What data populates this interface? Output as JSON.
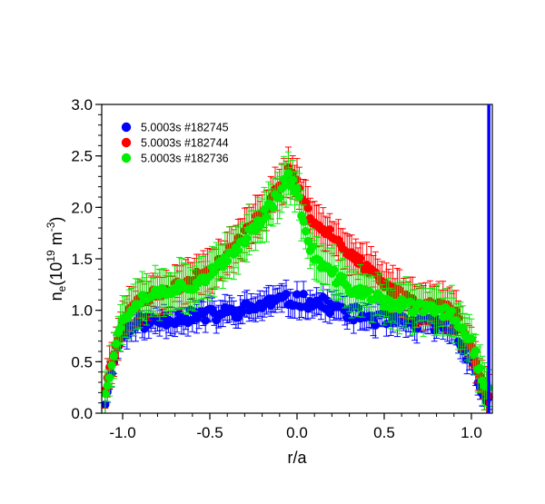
{
  "chart_data": {
    "type": "scatter",
    "title": "",
    "xlabel": "r/a",
    "ylabel": {
      "base": "n",
      "sub": "e",
      "unit_prefix": "(10",
      "unit_exp": "19",
      "unit_mid": " m",
      "unit_exp2": "-3",
      "unit_suffix": ")"
    },
    "xlim": [
      -1.12,
      1.12
    ],
    "ylim": [
      0.0,
      3.0
    ],
    "xticks": [
      -1.0,
      -0.5,
      0.0,
      0.5,
      1.0
    ],
    "xtick_labels": [
      "-1.0",
      "-0.5",
      "0.0",
      "0.5",
      "1.0"
    ],
    "yticks": [
      0.0,
      0.5,
      1.0,
      1.5,
      2.0,
      2.5,
      3.0
    ],
    "ytick_labels": [
      "0.0",
      "0.5",
      "1.0",
      "1.5",
      "2.0",
      "2.5",
      "3.0"
    ],
    "grid": false,
    "legend_position": "top-left",
    "series": [
      {
        "name": "5.0003s #182745",
        "color": "#0000ff",
        "profile": [
          [
            -1.1,
            0.12
          ],
          [
            -1.05,
            0.55
          ],
          [
            -1.0,
            0.78
          ],
          [
            -0.9,
            0.88
          ],
          [
            -0.7,
            0.93
          ],
          [
            -0.5,
            0.95
          ],
          [
            -0.3,
            1.0
          ],
          [
            -0.15,
            1.08
          ],
          [
            0.0,
            1.1
          ],
          [
            0.15,
            1.06
          ],
          [
            0.3,
            0.98
          ],
          [
            0.5,
            0.9
          ],
          [
            0.7,
            0.87
          ],
          [
            0.8,
            0.87
          ],
          [
            0.9,
            0.82
          ],
          [
            1.0,
            0.5
          ],
          [
            1.05,
            0.25
          ],
          [
            1.1,
            0.12
          ]
        ],
        "err_range": [
          0.1,
          0.14
        ],
        "jitter": 0.07,
        "seed": 11
      },
      {
        "name": "5.0003s #182744",
        "color": "#ff0000",
        "profile": [
          [
            -1.1,
            0.25
          ],
          [
            -1.05,
            0.6
          ],
          [
            -1.0,
            0.92
          ],
          [
            -0.9,
            1.1
          ],
          [
            -0.8,
            1.17
          ],
          [
            -0.7,
            1.22
          ],
          [
            -0.6,
            1.3
          ],
          [
            -0.5,
            1.4
          ],
          [
            -0.4,
            1.55
          ],
          [
            -0.3,
            1.75
          ],
          [
            -0.2,
            1.95
          ],
          [
            -0.1,
            2.2
          ],
          [
            -0.05,
            2.35
          ],
          [
            0.0,
            2.25
          ],
          [
            0.05,
            2.0
          ],
          [
            0.1,
            1.85
          ],
          [
            0.2,
            1.75
          ],
          [
            0.3,
            1.55
          ],
          [
            0.4,
            1.4
          ],
          [
            0.5,
            1.25
          ],
          [
            0.6,
            1.15
          ],
          [
            0.7,
            1.07
          ],
          [
            0.8,
            1.05
          ],
          [
            0.9,
            1.0
          ],
          [
            1.0,
            0.65
          ],
          [
            1.05,
            0.35
          ],
          [
            1.1,
            0.2
          ]
        ],
        "err_range": [
          0.15,
          0.22
        ],
        "jitter": 0.05,
        "seed": 23
      },
      {
        "name": "5.0003s #182736",
        "color": "#00ee00",
        "profile": [
          [
            -1.1,
            0.22
          ],
          [
            -1.05,
            0.58
          ],
          [
            -1.0,
            0.92
          ],
          [
            -0.9,
            1.12
          ],
          [
            -0.8,
            1.17
          ],
          [
            -0.7,
            1.22
          ],
          [
            -0.6,
            1.25
          ],
          [
            -0.5,
            1.35
          ],
          [
            -0.4,
            1.48
          ],
          [
            -0.3,
            1.7
          ],
          [
            -0.2,
            1.9
          ],
          [
            -0.1,
            2.15
          ],
          [
            -0.05,
            2.3
          ],
          [
            0.0,
            2.15
          ],
          [
            0.05,
            1.75
          ],
          [
            0.1,
            1.5
          ],
          [
            0.2,
            1.35
          ],
          [
            0.3,
            1.22
          ],
          [
            0.4,
            1.15
          ],
          [
            0.5,
            1.08
          ],
          [
            0.6,
            1.05
          ],
          [
            0.7,
            1.02
          ],
          [
            0.8,
            1.0
          ],
          [
            0.9,
            0.95
          ],
          [
            1.0,
            0.7
          ],
          [
            1.05,
            0.4
          ],
          [
            1.1,
            0.2
          ]
        ],
        "err_range": [
          0.15,
          0.25
        ],
        "jitter": 0.06,
        "seed": 37
      }
    ],
    "edge_line": {
      "x": 1.1,
      "y_range": [
        0.0,
        3.0
      ],
      "color": "#0000ff"
    }
  }
}
